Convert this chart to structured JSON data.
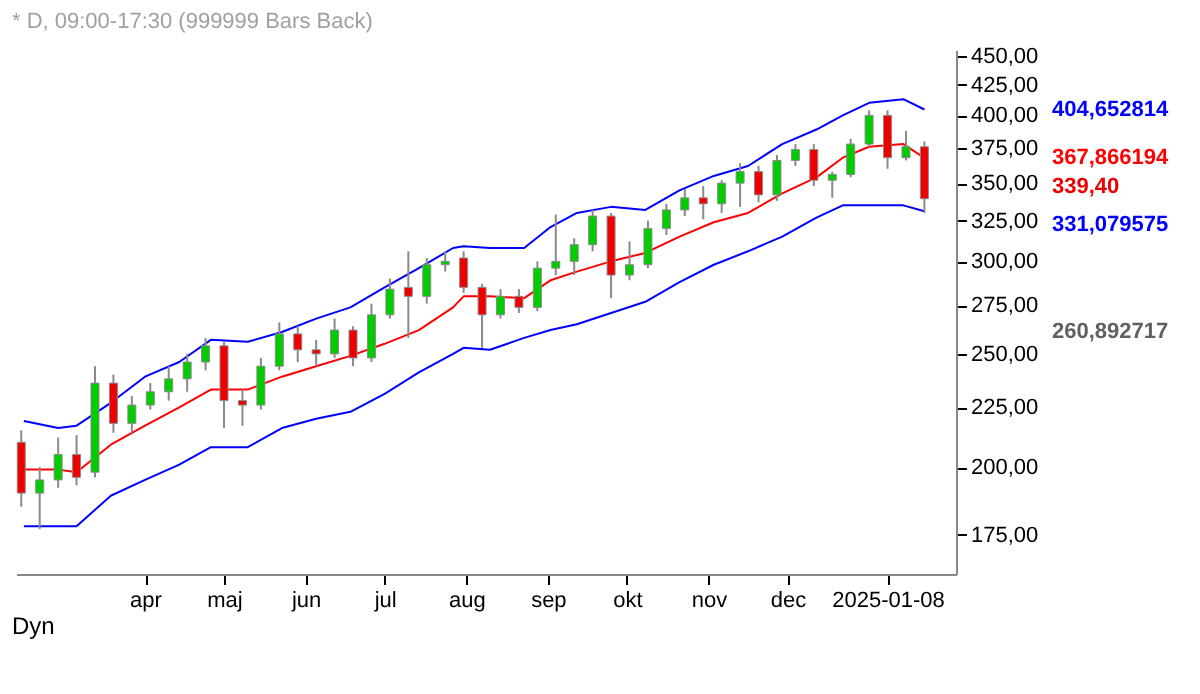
{
  "chart_data": {
    "type": "candlestick",
    "title": "* D, 09:00-17:30 (999999 Bars Back)",
    "x": [
      "2024-02-14",
      "2024-02-21",
      "2024-02-28",
      "2024-03-06",
      "2024-03-13",
      "2024-03-20",
      "2024-03-27",
      "2024-04-03",
      "2024-04-10",
      "2024-04-17",
      "2024-04-24",
      "2024-05-01",
      "2024-05-08",
      "2024-05-15",
      "2024-05-22",
      "2024-05-29",
      "2024-06-05",
      "2024-06-12",
      "2024-06-19",
      "2024-06-26",
      "2024-07-03",
      "2024-07-10",
      "2024-07-17",
      "2024-07-24",
      "2024-07-31",
      "2024-08-07",
      "2024-08-14",
      "2024-08-21",
      "2024-08-28",
      "2024-09-04",
      "2024-09-11",
      "2024-09-18",
      "2024-09-25",
      "2024-10-02",
      "2024-10-09",
      "2024-10-16",
      "2024-10-23",
      "2024-10-30",
      "2024-11-06",
      "2024-11-13",
      "2024-11-20",
      "2024-11-27",
      "2024-12-04",
      "2024-12-11",
      "2024-12-18",
      "2024-12-25",
      "2025-01-01",
      "2025-01-08",
      "2025-01-15",
      "2025-01-22"
    ],
    "ohlc": [
      [
        210,
        215,
        185,
        190
      ],
      [
        190,
        200,
        177,
        195
      ],
      [
        195,
        212,
        192,
        205
      ],
      [
        205,
        213,
        193,
        196
      ],
      [
        198,
        244,
        196,
        236
      ],
      [
        236,
        240,
        214,
        218
      ],
      [
        218,
        230,
        214,
        226
      ],
      [
        226,
        236,
        224,
        232
      ],
      [
        232,
        244,
        228,
        238
      ],
      [
        238,
        250,
        232,
        246
      ],
      [
        246,
        258,
        242,
        254
      ],
      [
        254,
        256,
        216,
        228
      ],
      [
        228,
        233,
        217,
        226
      ],
      [
        226,
        248,
        224,
        244
      ],
      [
        244,
        266,
        242,
        260
      ],
      [
        260,
        264,
        246,
        252
      ],
      [
        252,
        257,
        244,
        250
      ],
      [
        250,
        268,
        248,
        262
      ],
      [
        262,
        264,
        244,
        248
      ],
      [
        248,
        276,
        246,
        270
      ],
      [
        270,
        290,
        268,
        284
      ],
      [
        285,
        306,
        258,
        280
      ],
      [
        280,
        302,
        276,
        298
      ],
      [
        298,
        306,
        294,
        300
      ],
      [
        302,
        306,
        282,
        285
      ],
      [
        285,
        287,
        253,
        270
      ],
      [
        270,
        284,
        268,
        280
      ],
      [
        280,
        284,
        271,
        274
      ],
      [
        274,
        300,
        272,
        296
      ],
      [
        296,
        329,
        292,
        300
      ],
      [
        300,
        314,
        292,
        310
      ],
      [
        310,
        332,
        306,
        328
      ],
      [
        328,
        330,
        279,
        292
      ],
      [
        292,
        312,
        289,
        298
      ],
      [
        298,
        325,
        296,
        320
      ],
      [
        320,
        336,
        316,
        332
      ],
      [
        332,
        346,
        328,
        340
      ],
      [
        340,
        348,
        326,
        336
      ],
      [
        336,
        352,
        330,
        350
      ],
      [
        350,
        364,
        334,
        358
      ],
      [
        358,
        362,
        337,
        342
      ],
      [
        342,
        370,
        338,
        366
      ],
      [
        366,
        378,
        362,
        374
      ],
      [
        374,
        378,
        348,
        352
      ],
      [
        352,
        358,
        340,
        356
      ],
      [
        356,
        382,
        354,
        378
      ],
      [
        378,
        404,
        376,
        400
      ],
      [
        400,
        404,
        360,
        368
      ],
      [
        368,
        388,
        366,
        376
      ],
      [
        376,
        380,
        330,
        339.4
      ]
    ],
    "series": [
      {
        "type": "line",
        "color": "#0000ff",
        "x": [
          "2024-02-15",
          "2024-02-28",
          "2024-03-06",
          "2024-03-19",
          "2024-04-01",
          "2024-04-14",
          "2024-04-26",
          "2024-05-10",
          "2024-05-23",
          "2024-06-05",
          "2024-06-18",
          "2024-07-01",
          "2024-07-14",
          "2024-07-27",
          "2024-07-31",
          "2024-08-10",
          "2024-08-23",
          "2024-09-02",
          "2024-09-12",
          "2024-09-25",
          "2024-10-08",
          "2024-10-21",
          "2024-11-03",
          "2024-11-16",
          "2024-11-29",
          "2024-12-12",
          "2024-12-22",
          "2025-01-01",
          "2025-01-14",
          "2025-01-22"
        ],
        "values": [
          219,
          216,
          217,
          227,
          239,
          246,
          257,
          256,
          261,
          268,
          274,
          285,
          296,
          308,
          309,
          308,
          308,
          321,
          330,
          334,
          332,
          345,
          355,
          362,
          378,
          389,
          400,
          410,
          413,
          404.652814
        ]
      },
      {
        "type": "line",
        "color": "#ff0000",
        "x": [
          "2024-02-15",
          "2024-02-28",
          "2024-03-06",
          "2024-03-19",
          "2024-04-01",
          "2024-04-14",
          "2024-04-26",
          "2024-05-10",
          "2024-05-23",
          "2024-06-05",
          "2024-06-18",
          "2024-07-01",
          "2024-07-14",
          "2024-07-27",
          "2024-07-31",
          "2024-08-10",
          "2024-08-23",
          "2024-09-02",
          "2024-09-12",
          "2024-09-25",
          "2024-10-08",
          "2024-10-21",
          "2024-11-03",
          "2024-11-16",
          "2024-11-29",
          "2024-12-12",
          "2024-12-22",
          "2025-01-01",
          "2025-01-14",
          "2025-01-22"
        ],
        "values": [
          199,
          199,
          198,
          209,
          217,
          225,
          233,
          233,
          239,
          244,
          249,
          255,
          262,
          274,
          280,
          280,
          279,
          289,
          294,
          300,
          305,
          315,
          324,
          330,
          343,
          354,
          368,
          376,
          378,
          367.866194
        ]
      },
      {
        "type": "line",
        "color": "#0000ff",
        "x": [
          "2024-02-15",
          "2024-02-28",
          "2024-03-06",
          "2024-03-19",
          "2024-04-01",
          "2024-04-14",
          "2024-04-26",
          "2024-05-10",
          "2024-05-23",
          "2024-06-05",
          "2024-06-18",
          "2024-07-01",
          "2024-07-14",
          "2024-07-27",
          "2024-07-31",
          "2024-08-10",
          "2024-08-23",
          "2024-09-02",
          "2024-09-12",
          "2024-09-25",
          "2024-10-08",
          "2024-10-21",
          "2024-11-03",
          "2024-11-16",
          "2024-11-29",
          "2024-12-12",
          "2024-12-22",
          "2025-01-01",
          "2025-01-14",
          "2025-01-22"
        ],
        "values": [
          178,
          178,
          178,
          189,
          195,
          201,
          208,
          208,
          216,
          220,
          223,
          231,
          241,
          250,
          253,
          252,
          258,
          262,
          265,
          271,
          277,
          288,
          298,
          306,
          315,
          327,
          335,
          335,
          335,
          331.079575
        ]
      }
    ],
    "xlim": [
      "2024-02-12",
      "2025-02-03"
    ],
    "xticks": [
      {
        "value": "2024-04-01",
        "label": "apr"
      },
      {
        "value": "2024-05-01",
        "label": "maj"
      },
      {
        "value": "2024-06-01",
        "label": "jun"
      },
      {
        "value": "2024-07-01",
        "label": "jul"
      },
      {
        "value": "2024-08-01",
        "label": "aug"
      },
      {
        "value": "2024-09-01",
        "label": "sep"
      },
      {
        "value": "2024-10-01",
        "label": "okt"
      },
      {
        "value": "2024-11-01",
        "label": "nov"
      },
      {
        "value": "2024-12-01",
        "label": "dec"
      },
      {
        "value": "2025-01-08",
        "label": "2025-01-08"
      }
    ],
    "ylim": [
      162,
      455
    ],
    "log": true,
    "yticks": [
      {
        "value": 175,
        "label": "175,00"
      },
      {
        "value": 200,
        "label": "200,00"
      },
      {
        "value": 225,
        "label": "225,00"
      },
      {
        "value": 250,
        "label": "250,00"
      },
      {
        "value": 275,
        "label": "275,00"
      },
      {
        "value": 300,
        "label": "300,00"
      },
      {
        "value": 325,
        "label": "325,00"
      },
      {
        "value": 350,
        "label": "350,00"
      },
      {
        "value": 375,
        "label": "375,00"
      },
      {
        "value": 400,
        "label": "400,00"
      },
      {
        "value": 425,
        "label": "425,00"
      },
      {
        "value": 450,
        "label": "450,00"
      }
    ],
    "annotations": [
      "404,652814",
      "367,866194",
      "339,40",
      "331,079575",
      "260,892717",
      "Dyn"
    ]
  }
}
